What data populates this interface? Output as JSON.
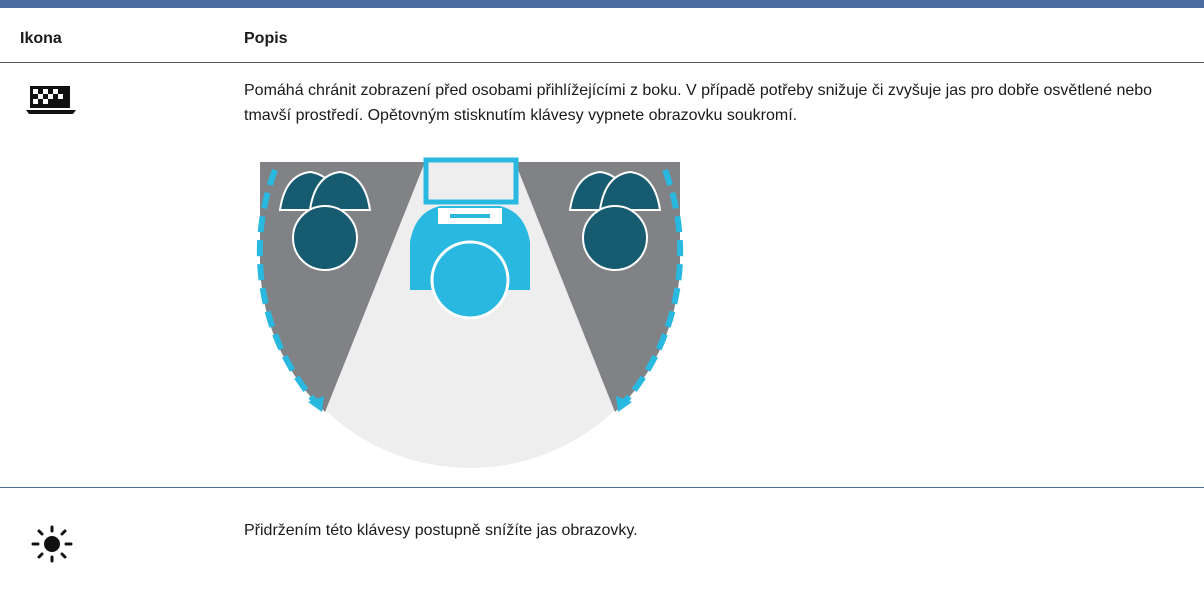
{
  "table": {
    "columns": [
      "Ikona",
      "Popis"
    ],
    "rows": [
      {
        "description": "Pomáhá chránit zobrazení před osobami přihlížejícími z boku. V případě potřeby snižuje či zvyšuje jas pro dobře osvětlené nebo tmavší prostředí. Opětovným stisknutím klávesy vypnete obrazovku soukromí."
      },
      {
        "description": "Přidržením této klávesy postupně snížíte jas obrazovky."
      }
    ]
  }
}
